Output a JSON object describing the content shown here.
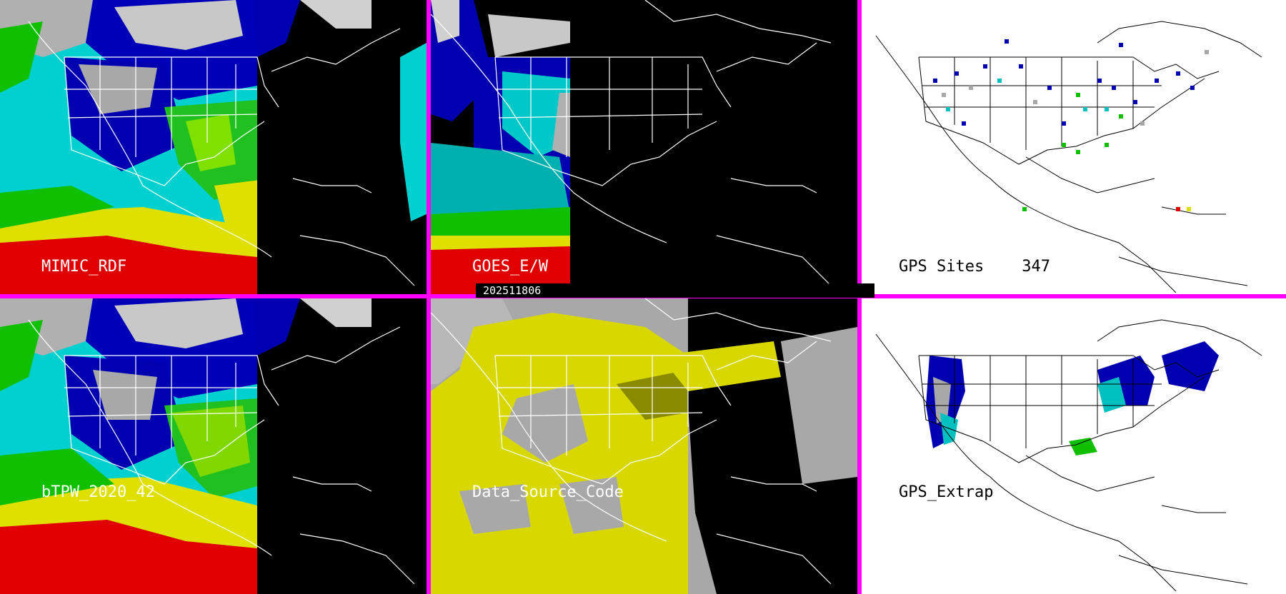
{
  "panels": [
    {
      "id": "mimic-rdf",
      "label": "MIMIC_RDF",
      "theme": "tpw-full"
    },
    {
      "id": "goes-ew",
      "label": "GOES_E/W",
      "theme": "tpw-partial"
    },
    {
      "id": "gps-sites",
      "label": "GPS Sites",
      "count": "347",
      "theme": "gps-points"
    },
    {
      "id": "btpw",
      "label": "bTPW_2020_42",
      "theme": "tpw-full"
    },
    {
      "id": "data-source",
      "label": "Data_Source_Code",
      "theme": "source-code"
    },
    {
      "id": "gps-extrap",
      "label": "GPS_Extrap",
      "theme": "gps-extrap"
    }
  ],
  "timestamp": "202511806",
  "colors": {
    "separator": "#ff00ff",
    "night": "#000000",
    "ocean_moist": "#00e0e0",
    "mid_moist": "#0000b0",
    "dry": "#b0b0b0",
    "green": "#10c000",
    "yellow": "#e0e000",
    "red": "#e00000",
    "source_yellow": "#d8d800",
    "source_grey": "#a8a8a8"
  }
}
